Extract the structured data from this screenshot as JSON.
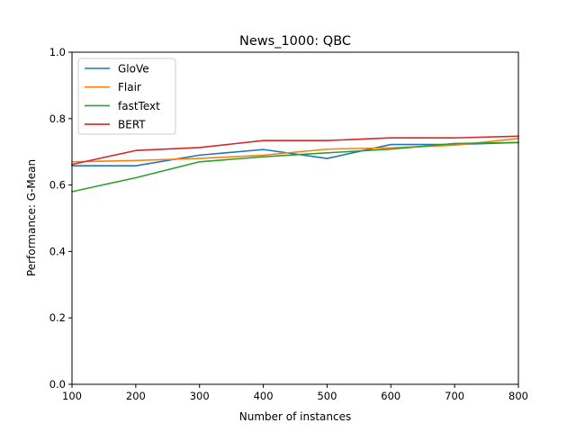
{
  "chart_data": {
    "type": "line",
    "title": "News_1000: QBC",
    "xlabel": "Number of instances",
    "ylabel": "Performance: G-Mean",
    "xlim": [
      100,
      800
    ],
    "ylim": [
      0.0,
      1.0
    ],
    "xticks": [
      100,
      200,
      300,
      400,
      500,
      600,
      700,
      800
    ],
    "yticks": [
      0.0,
      0.2,
      0.4,
      0.6,
      0.8,
      1.0
    ],
    "xtick_labels": [
      "100",
      "200",
      "300",
      "400",
      "500",
      "600",
      "700",
      "800"
    ],
    "ytick_labels": [
      "0.0",
      "0.2",
      "0.4",
      "0.6",
      "0.8",
      "1.0"
    ],
    "grid": false,
    "legend_position": "top-left",
    "x": [
      100,
      200,
      300,
      400,
      500,
      600,
      700,
      800
    ],
    "series": [
      {
        "name": "GloVe",
        "color": "#1f77b4",
        "values": [
          0.658,
          0.658,
          0.69,
          0.707,
          0.68,
          0.722,
          0.722,
          0.728
        ]
      },
      {
        "name": "Flair",
        "color": "#ff7f0e",
        "values": [
          0.67,
          0.674,
          0.68,
          0.69,
          0.708,
          0.712,
          0.72,
          0.74
        ]
      },
      {
        "name": "fastText",
        "color": "#2ca02c",
        "values": [
          0.58,
          0.622,
          0.67,
          0.685,
          0.697,
          0.708,
          0.725,
          0.728
        ]
      },
      {
        "name": "BERT",
        "color": "#d62728",
        "values": [
          0.662,
          0.704,
          0.713,
          0.734,
          0.734,
          0.742,
          0.742,
          0.747
        ]
      }
    ]
  }
}
